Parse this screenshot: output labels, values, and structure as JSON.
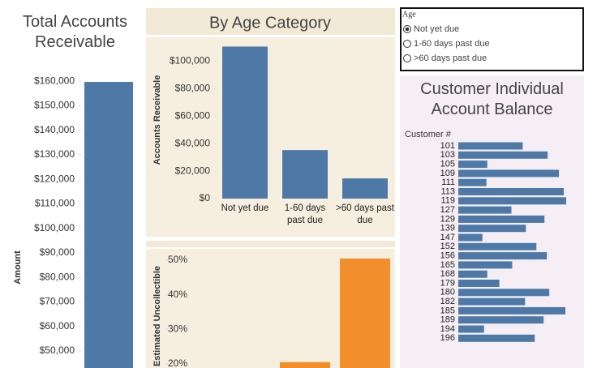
{
  "chart_data": [
    {
      "type": "bar",
      "title": "Total Accounts Receivable",
      "y_label": "Amount",
      "categories": [
        null
      ],
      "values": [
        159700
      ],
      "color": "#4e79a7",
      "ylim": [
        43000,
        165000
      ],
      "yticks": [
        {
          "value": 50000,
          "label": "$50,000"
        },
        {
          "value": 60000,
          "label": "$60,000"
        },
        {
          "value": 70000,
          "label": "$70,000"
        },
        {
          "value": 80000,
          "label": "$80,000"
        },
        {
          "value": 90000,
          "label": "$90,000"
        },
        {
          "value": 100000,
          "label": "$100,000"
        },
        {
          "value": 110000,
          "label": "$110,000"
        },
        {
          "value": 120000,
          "label": "$120,000"
        },
        {
          "value": 130000,
          "label": "$130,000"
        },
        {
          "value": 140000,
          "label": "$140,000"
        },
        {
          "value": 150000,
          "label": "$150,000"
        },
        {
          "value": 160000,
          "label": "$160,000"
        }
      ]
    },
    {
      "type": "bar",
      "title": "By Age Category",
      "y_label": "Accounts Receivable",
      "categories": [
        "Not yet due",
        "1-60 days past due",
        ">60 days past due"
      ],
      "values": [
        110600,
        35300,
        14700
      ],
      "color": "#4e79a7",
      "ylim": [
        0,
        115000
      ],
      "yticks": [
        {
          "value": 0,
          "label": "$0"
        },
        {
          "value": 20000,
          "label": "$20,000"
        },
        {
          "value": 40000,
          "label": "$40,000"
        },
        {
          "value": 60000,
          "label": "$60,000"
        },
        {
          "value": 80000,
          "label": "$80,000"
        },
        {
          "value": 100000,
          "label": "$100,000"
        }
      ]
    },
    {
      "type": "bar",
      "y_label": "Estimated Uncollectible",
      "categories": [
        null,
        null,
        null
      ],
      "values": [
        null,
        20.5,
        50.5
      ],
      "color": "#f28e2b",
      "ylim": [
        18.8,
        52.6
      ],
      "yticks": [
        {
          "value": 20,
          "label": "20%"
        },
        {
          "value": 30,
          "label": "30%"
        },
        {
          "value": 40,
          "label": "40%"
        },
        {
          "value": 50,
          "label": "50%"
        }
      ]
    },
    {
      "type": "hbar",
      "title": "Customer Individual Account Balance",
      "category_label": "Customer #",
      "categories": [
        "101",
        "103",
        "105",
        "109",
        "111",
        "113",
        "119",
        "127",
        "129",
        "139",
        "147",
        "152",
        "156",
        "165",
        "168",
        "179",
        "180",
        "182",
        "185",
        "189",
        "194",
        "196"
      ],
      "values": [
        80,
        111,
        36,
        125,
        35,
        131,
        134,
        66,
        107,
        84,
        30,
        97,
        110,
        67,
        36,
        51,
        113,
        83,
        133,
        106,
        32,
        95
      ],
      "color": "#4e79a7",
      "xlim": [
        0,
        135
      ]
    }
  ],
  "filter": {
    "title": "Age",
    "options": [
      "Not yet due",
      "1-60 days past due",
      ">60 days past due"
    ],
    "selected": 0
  }
}
